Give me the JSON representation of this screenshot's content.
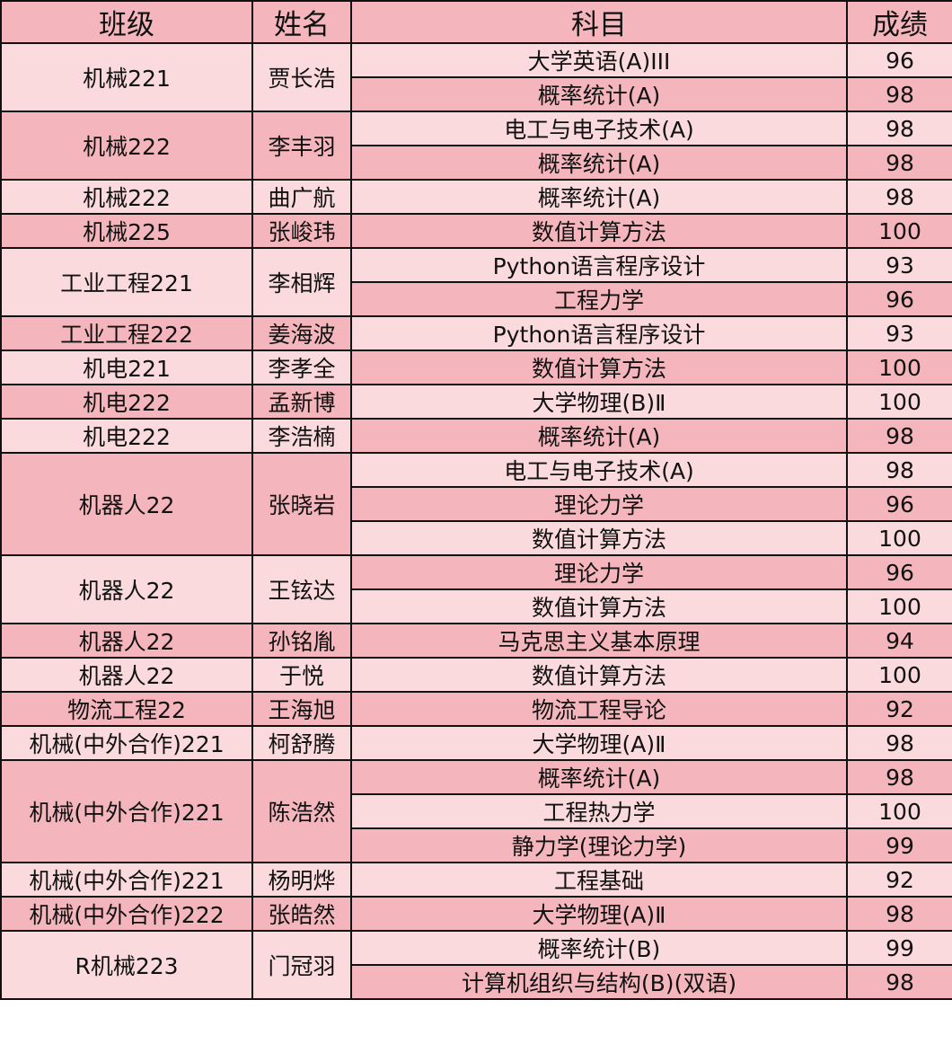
{
  "colors": {
    "light": "#fadadd",
    "dark": "#f4b6bc",
    "border": "#111111"
  },
  "header": {
    "class": "班级",
    "name": "姓名",
    "subject": "科目",
    "score": "成绩"
  },
  "groups": [
    {
      "class": "机械221",
      "name": "贾长浩",
      "items": [
        {
          "subject": "大学英语(A)III",
          "score": "96"
        },
        {
          "subject": "概率统计(A)",
          "score": "98"
        }
      ]
    },
    {
      "class": "机械222",
      "name": "李丰羽",
      "items": [
        {
          "subject": "电工与电子技术(A)",
          "score": "98"
        },
        {
          "subject": "概率统计(A)",
          "score": "98"
        }
      ]
    },
    {
      "class": "机械222",
      "name": "曲广航",
      "items": [
        {
          "subject": "概率统计(A)",
          "score": "98"
        }
      ]
    },
    {
      "class": "机械225",
      "name": "张峻玮",
      "items": [
        {
          "subject": "数值计算方法",
          "score": "100"
        }
      ]
    },
    {
      "class": "工业工程221",
      "name": "李相辉",
      "items": [
        {
          "subject": "Python语言程序设计",
          "score": "93"
        },
        {
          "subject": "工程力学",
          "score": "96"
        }
      ]
    },
    {
      "class": "工业工程222",
      "name": "姜海波",
      "items": [
        {
          "subject": "Python语言程序设计",
          "score": "93"
        }
      ]
    },
    {
      "class": "机电221",
      "name": "李孝全",
      "items": [
        {
          "subject": "数值计算方法",
          "score": "100"
        }
      ]
    },
    {
      "class": "机电222",
      "name": "孟新博",
      "items": [
        {
          "subject": "大学物理(B)Ⅱ",
          "score": "100"
        }
      ]
    },
    {
      "class": "机电222",
      "name": "李浩楠",
      "items": [
        {
          "subject": "概率统计(A)",
          "score": "98"
        }
      ]
    },
    {
      "class": "机器人22",
      "name": "张晓岩",
      "items": [
        {
          "subject": "电工与电子技术(A)",
          "score": "98"
        },
        {
          "subject": "理论力学",
          "score": "96"
        },
        {
          "subject": "数值计算方法",
          "score": "100"
        }
      ]
    },
    {
      "class": "机器人22",
      "name": "王铉达",
      "items": [
        {
          "subject": "理论力学",
          "score": "96"
        },
        {
          "subject": "数值计算方法",
          "score": "100"
        }
      ]
    },
    {
      "class": "机器人22",
      "name": "孙铭胤",
      "items": [
        {
          "subject": "马克思主义基本原理",
          "score": "94"
        }
      ]
    },
    {
      "class": "机器人22",
      "name": "于悦",
      "items": [
        {
          "subject": "数值计算方法",
          "score": "100"
        }
      ]
    },
    {
      "class": "物流工程22",
      "name": "王海旭",
      "items": [
        {
          "subject": "物流工程导论",
          "score": "92"
        }
      ]
    },
    {
      "class": "机械(中外合作)221",
      "name": "柯舒腾",
      "items": [
        {
          "subject": "大学物理(A)Ⅱ",
          "score": "98"
        }
      ]
    },
    {
      "class": "机械(中外合作)221",
      "name": "陈浩然",
      "items": [
        {
          "subject": "概率统计(A)",
          "score": "98"
        },
        {
          "subject": "工程热力学",
          "score": "100"
        },
        {
          "subject": "静力学(理论力学)",
          "score": "99"
        }
      ]
    },
    {
      "class": "机械(中外合作)221",
      "name": "杨明烨",
      "items": [
        {
          "subject": "工程基础",
          "score": "92"
        }
      ]
    },
    {
      "class": "机械(中外合作)222",
      "name": "张皓然",
      "items": [
        {
          "subject": "大学物理(A)Ⅱ",
          "score": "98"
        }
      ]
    },
    {
      "class": "R机械223",
      "name": "门冠羽",
      "items": [
        {
          "subject": "概率统计(B)",
          "score": "99"
        },
        {
          "subject": "计算机组织与结构(B)(双语)",
          "score": "98"
        }
      ]
    }
  ]
}
